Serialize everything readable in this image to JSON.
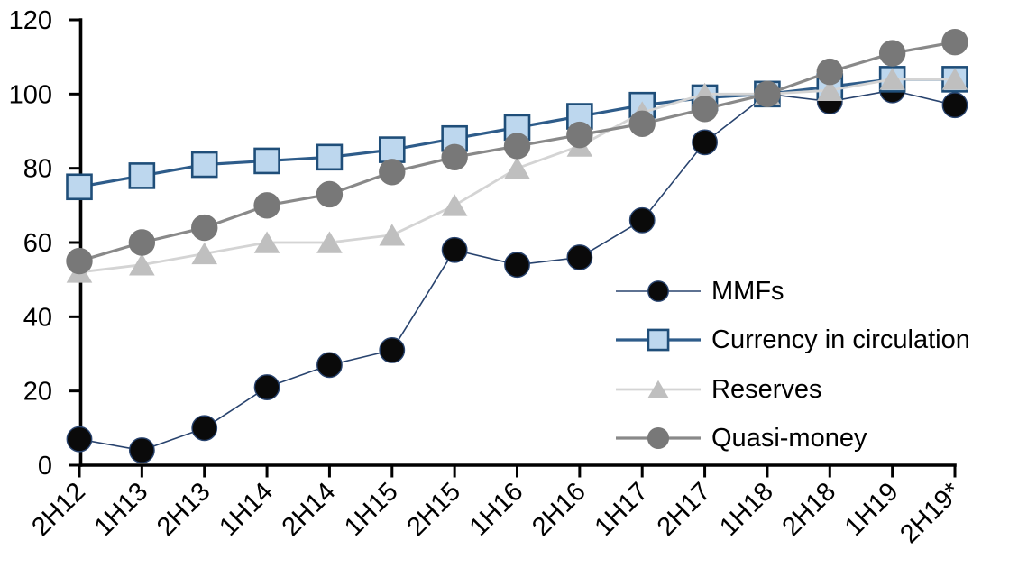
{
  "background": "#ffffff",
  "chart_data": {
    "type": "line",
    "title": "",
    "xlabel": "",
    "ylabel": "",
    "grid": false,
    "legend_position": "inside-right",
    "axis_color": "#000000",
    "tick_font_size": 29,
    "ylim": [
      0,
      120
    ],
    "yticks": [
      0,
      20,
      40,
      60,
      80,
      100,
      120
    ],
    "categories": [
      "2H12",
      "1H13",
      "2H13",
      "1H14",
      "2H14",
      "1H15",
      "2H15",
      "1H16",
      "2H16",
      "1H17",
      "2H17",
      "1H18",
      "2H18",
      "1H19",
      "2H19*"
    ],
    "series": [
      {
        "name": "MMFs",
        "marker": "circle",
        "values": [
          7,
          4,
          10,
          21,
          27,
          31,
          58,
          54,
          56,
          66,
          87,
          100,
          98,
          101,
          97
        ],
        "line_color": "#28436e",
        "line_width": 1.6,
        "marker_fill": "#0a0a0a",
        "marker_stroke": "#28436e",
        "marker_stroke_width": 1.4,
        "marker_size": 13.7
      },
      {
        "name": "Currency in circulation",
        "marker": "square",
        "values": [
          75,
          78,
          81,
          82,
          83,
          85,
          88,
          91,
          94,
          97,
          99,
          100,
          102,
          104,
          104
        ],
        "line_color": "#2e5c8a",
        "line_width": 3.2,
        "marker_fill": "#bdd7ee",
        "marker_stroke": "#1f4e79",
        "marker_stroke_width": 2.6,
        "marker_size": 13.5
      },
      {
        "name": "Reserves",
        "marker": "triangle",
        "values": [
          52,
          54,
          57,
          60,
          60,
          62,
          70,
          80,
          86,
          95,
          100,
          100,
          101,
          104,
          104
        ],
        "line_color": "#d4d4d4",
        "line_width": 2.8,
        "marker_fill": "#bfbfbf",
        "marker_stroke": "none",
        "marker_stroke_width": 0,
        "marker_size": 13.5
      },
      {
        "name": "Quasi-money",
        "marker": "circle",
        "values": [
          55,
          60,
          64,
          70,
          73,
          79,
          83,
          86,
          89,
          92,
          96,
          100,
          106,
          111,
          114
        ],
        "line_color": "#898989",
        "line_width": 3.2,
        "marker_fill": "#787878",
        "marker_stroke": "none",
        "marker_stroke_width": 0,
        "marker_size": 14.7
      }
    ]
  }
}
